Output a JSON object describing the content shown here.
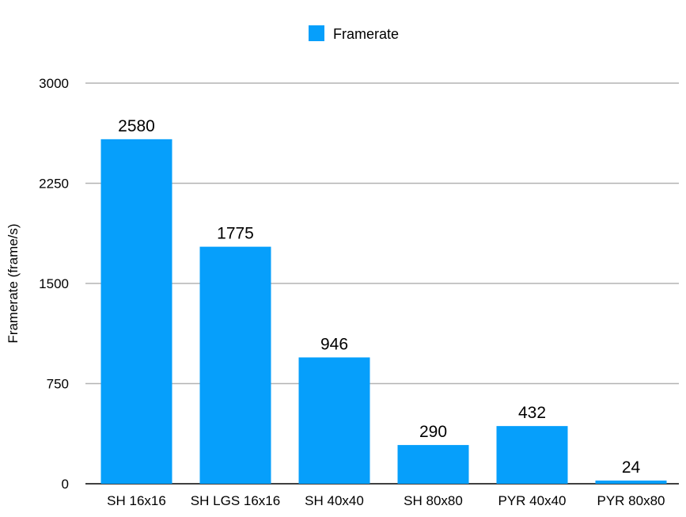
{
  "chart_data": {
    "type": "bar",
    "categories": [
      "SH 16x16",
      "SH LGS 16x16",
      "SH 40x40",
      "SH 80x80",
      "PYR 40x40",
      "PYR 80x80"
    ],
    "series": [
      {
        "name": "Framerate",
        "values": [
          2580,
          1775,
          946,
          290,
          432,
          24
        ],
        "color": "#069ffb"
      }
    ],
    "ylabel": "Framerate (frame/s)",
    "ylim": [
      0,
      3000
    ],
    "yticks": [
      0,
      750,
      1500,
      2250,
      3000
    ],
    "grid": true,
    "legend_position": "top-center",
    "data_labels": true
  }
}
